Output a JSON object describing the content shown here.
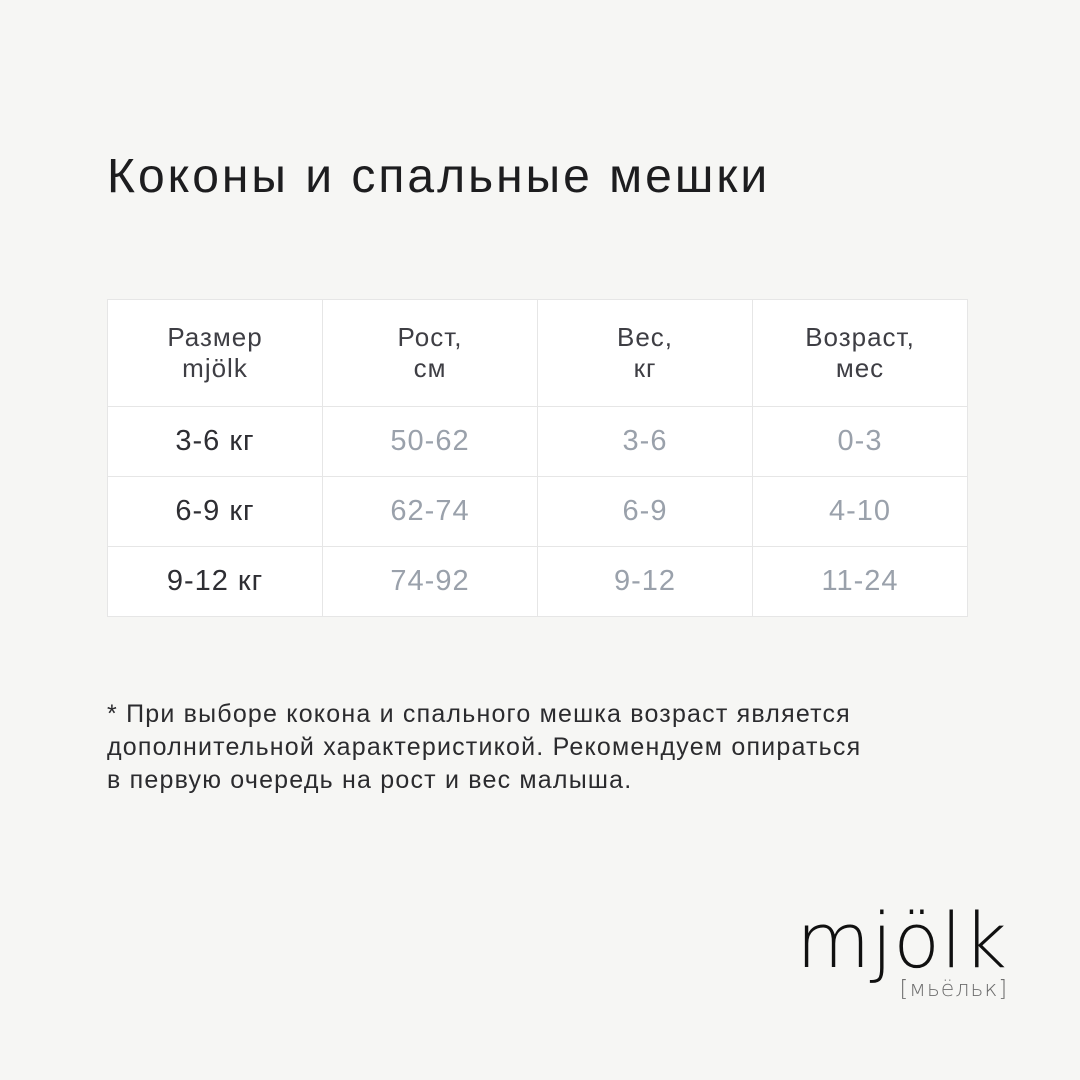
{
  "page": {
    "title": "Коконы и спальные мешки"
  },
  "colors": {
    "page_background": "#f6f6f4",
    "cell_background": "#ffffff",
    "table_border": "#e6e6e6",
    "title_text": "#1d1d1f",
    "header_text": "#3e3e44",
    "size_text": "#2e2e33",
    "muted_value_text": "#9aa1ab",
    "footnote_text": "#2b2b2e",
    "logo_text": "#101010",
    "logo_sub_text": "#6e6e6e"
  },
  "chart_data": {
    "type": "table",
    "title": "Коконы и спальные мешки",
    "columns": [
      "Размер mjölk",
      "Рост, см",
      "Вес, кг",
      "Возраст, мес"
    ],
    "rows": [
      [
        "3-6 кг",
        "50-62",
        "3-6",
        "0-3"
      ],
      [
        "6-9 кг",
        "62-74",
        "6-9",
        "4-10"
      ],
      [
        "9-12 кг",
        "74-92",
        "9-12",
        "11-24"
      ]
    ]
  },
  "table": {
    "columns": [
      {
        "line1": "Размер",
        "line2": "mjölk"
      },
      {
        "line1": "Рост,",
        "line2": "см"
      },
      {
        "line1": "Вес,",
        "line2": "кг"
      },
      {
        "line1": "Возраст,",
        "line2": "мес"
      }
    ],
    "rows": [
      {
        "size": "3-6 кг",
        "height": "50-62",
        "weight": "3-6",
        "age": "0-3"
      },
      {
        "size": "6-9 кг",
        "height": "62-74",
        "weight": "6-9",
        "age": "4-10"
      },
      {
        "size": "9-12 кг",
        "height": "74-92",
        "weight": "9-12",
        "age": "11-24"
      }
    ]
  },
  "footnote": {
    "lines": [
      "* При выборе кокона и спального мешка возраст является",
      "дополнительной характеристикой. Рекомендуем опираться",
      "в первую очередь на рост и вес малыша."
    ]
  },
  "logo": {
    "brand": "mjölk",
    "transcription": "[мьёльк]"
  }
}
